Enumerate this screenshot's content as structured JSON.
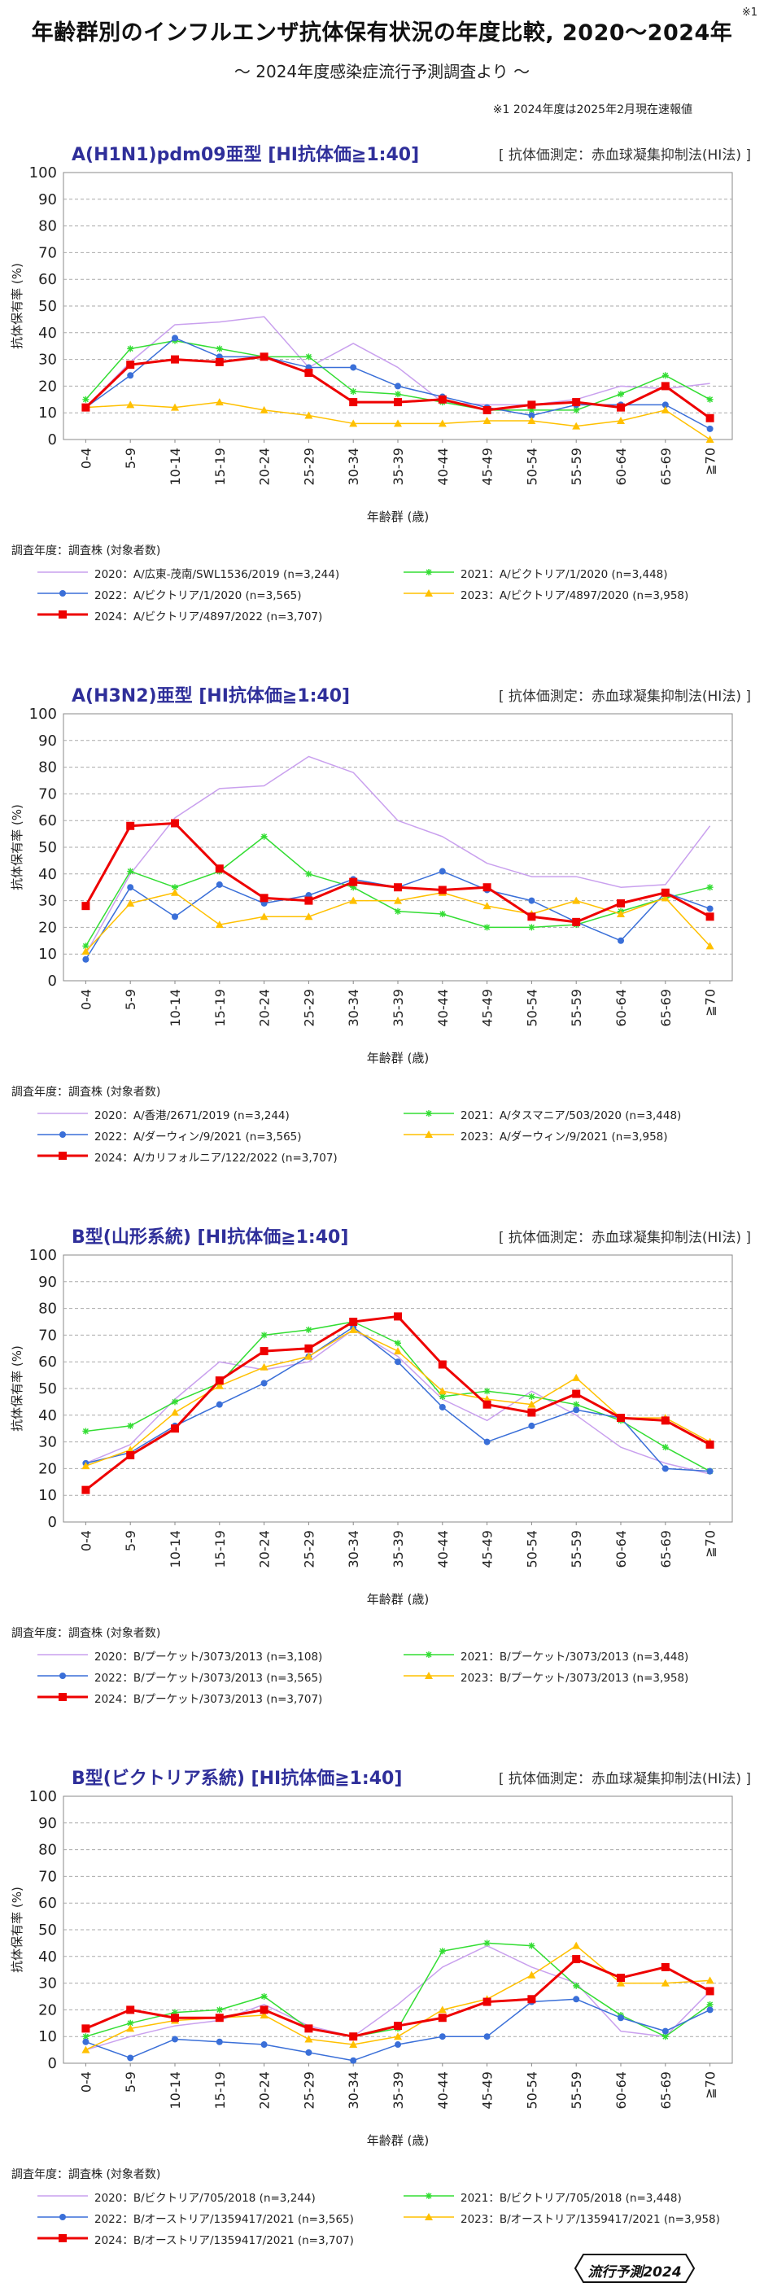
{
  "header": {
    "title": "年齢群別のインフルエンザ抗体保有状況の年度比較, 2020〜2024年",
    "title_sup": "※1",
    "subtitle": "〜 2024年度感染症流行予測調査より 〜",
    "note": "※1 2024年度は2025年2月現在速報値"
  },
  "badge": {
    "label": "流行予測2024"
  },
  "chart_data": [
    {
      "type": "line",
      "title": "A(H1N1)pdm09亜型 [HI抗体価≧1:40]",
      "method": "[ 抗体価測定：赤血球凝集抑制法(HI法) ]",
      "xlabel": "年齢群 (歳)",
      "ylabel": "抗体保有率 (%)",
      "ylim": [
        0,
        100
      ],
      "yticks": [
        0,
        10,
        20,
        30,
        40,
        50,
        60,
        70,
        80,
        90,
        100
      ],
      "grid": true,
      "legend_header": "調査年度：調査株 (対象者数)",
      "categories": [
        "0-4",
        "5-9",
        "10-14",
        "15-19",
        "20-24",
        "25-29",
        "30-34",
        "35-39",
        "40-44",
        "45-49",
        "50-54",
        "55-59",
        "60-64",
        "65-69",
        "≧70"
      ],
      "series": [
        {
          "name": "2020：A/広東-茂南/SWL1536/2019 (n=3,244)",
          "color": "#c9a0ee",
          "marker": "none",
          "width": 1.5,
          "values": [
            12,
            29,
            43,
            44,
            46,
            27,
            36,
            27,
            14,
            13,
            13,
            15,
            20,
            19,
            21
          ]
        },
        {
          "name": "2021：A/ビクトリア/1/2020 (n=3,448)",
          "color": "#33dd33",
          "marker": "star",
          "width": 1.5,
          "values": [
            15,
            34,
            37,
            34,
            31,
            31,
            18,
            17,
            14,
            11,
            11,
            11,
            17,
            24,
            15
          ]
        },
        {
          "name": "2022：A/ビクトリア/1/2020 (n=3,565)",
          "color": "#3a6fd8",
          "marker": "circle",
          "width": 1.5,
          "values": [
            12,
            24,
            38,
            31,
            31,
            27,
            27,
            20,
            16,
            12,
            9,
            13,
            13,
            13,
            4
          ]
        },
        {
          "name": "2023：A/ビクトリア/4897/2020 (n=3,958)",
          "color": "#ffc000",
          "marker": "triangle",
          "width": 1.5,
          "values": [
            12,
            13,
            12,
            14,
            11,
            9,
            6,
            6,
            6,
            7,
            7,
            5,
            7,
            11,
            0
          ]
        },
        {
          "name": "2024：A/ビクトリア/4897/2022 (n=3,707)",
          "color": "#ee0000",
          "marker": "square",
          "width": 3,
          "values": [
            12,
            28,
            30,
            29,
            31,
            25,
            14,
            14,
            15,
            11,
            13,
            14,
            12,
            20,
            8
          ]
        }
      ]
    },
    {
      "type": "line",
      "title": "A(H3N2)亜型 [HI抗体価≧1:40]",
      "method": "[ 抗体価測定：赤血球凝集抑制法(HI法) ]",
      "xlabel": "年齢群 (歳)",
      "ylabel": "抗体保有率 (%)",
      "ylim": [
        0,
        100
      ],
      "yticks": [
        0,
        10,
        20,
        30,
        40,
        50,
        60,
        70,
        80,
        90,
        100
      ],
      "grid": true,
      "legend_header": "調査年度：調査株 (対象者数)",
      "categories": [
        "0-4",
        "5-9",
        "10-14",
        "15-19",
        "20-24",
        "25-29",
        "30-34",
        "35-39",
        "40-44",
        "45-49",
        "50-54",
        "55-59",
        "60-64",
        "65-69",
        "≧70"
      ],
      "series": [
        {
          "name": "2020：A/香港/2671/2019 (n=3,244)",
          "color": "#c9a0ee",
          "marker": "none",
          "width": 1.5,
          "values": [
            10,
            40,
            61,
            72,
            73,
            84,
            78,
            60,
            54,
            44,
            39,
            39,
            35,
            36,
            58
          ]
        },
        {
          "name": "2021：A/タスマニア/503/2020 (n=3,448)",
          "color": "#33dd33",
          "marker": "star",
          "width": 1.5,
          "values": [
            13,
            41,
            35,
            41,
            54,
            40,
            35,
            26,
            25,
            20,
            20,
            21,
            26,
            31,
            35
          ]
        },
        {
          "name": "2022：A/ダーウィン/9/2021 (n=3,565)",
          "color": "#3a6fd8",
          "marker": "circle",
          "width": 1.5,
          "values": [
            8,
            35,
            24,
            36,
            29,
            32,
            38,
            35,
            41,
            34,
            30,
            22,
            15,
            33,
            27
          ]
        },
        {
          "name": "2023：A/ダーウィン/9/2021 (n=3,958)",
          "color": "#ffc000",
          "marker": "triangle",
          "width": 1.5,
          "values": [
            11,
            29,
            33,
            21,
            24,
            24,
            30,
            30,
            33,
            28,
            25,
            30,
            25,
            31,
            13
          ]
        },
        {
          "name": "2024：A/カリフォルニア/122/2022 (n=3,707)",
          "color": "#ee0000",
          "marker": "square",
          "width": 3,
          "values": [
            28,
            58,
            59,
            42,
            31,
            30,
            37,
            35,
            34,
            35,
            24,
            22,
            29,
            33,
            24
          ]
        }
      ]
    },
    {
      "type": "line",
      "title": "B型(山形系統) [HI抗体価≧1:40]",
      "method": "[ 抗体価測定：赤血球凝集抑制法(HI法) ]",
      "xlabel": "年齢群 (歳)",
      "ylabel": "抗体保有率 (%)",
      "ylim": [
        0,
        100
      ],
      "yticks": [
        0,
        10,
        20,
        30,
        40,
        50,
        60,
        70,
        80,
        90,
        100
      ],
      "grid": true,
      "legend_header": "調査年度：調査株 (対象者数)",
      "categories": [
        "0-4",
        "5-9",
        "10-14",
        "15-19",
        "20-24",
        "25-29",
        "30-34",
        "35-39",
        "40-44",
        "45-49",
        "50-54",
        "55-59",
        "60-64",
        "65-69",
        "≧70"
      ],
      "series": [
        {
          "name": "2020：B/プーケット/3073/2013 (n=3,108)",
          "color": "#c9a0ee",
          "marker": "none",
          "width": 1.5,
          "values": [
            22,
            29,
            46,
            60,
            57,
            60,
            72,
            62,
            46,
            38,
            49,
            40,
            28,
            22,
            18
          ]
        },
        {
          "name": "2021：B/プーケット/3073/2013 (n=3,448)",
          "color": "#33dd33",
          "marker": "star",
          "width": 1.5,
          "values": [
            34,
            36,
            45,
            52,
            70,
            72,
            75,
            67,
            47,
            49,
            47,
            44,
            38,
            28,
            19
          ]
        },
        {
          "name": "2022：B/プーケット/3073/2013 (n=3,565)",
          "color": "#3a6fd8",
          "marker": "circle",
          "width": 1.5,
          "values": [
            22,
            26,
            36,
            44,
            52,
            62,
            73,
            60,
            43,
            30,
            36,
            42,
            39,
            20,
            19
          ]
        },
        {
          "name": "2023：B/プーケット/3073/2013 (n=3,958)",
          "color": "#ffc000",
          "marker": "triangle",
          "width": 1.5,
          "values": [
            21,
            27,
            41,
            51,
            58,
            62,
            72,
            64,
            49,
            46,
            44,
            54,
            39,
            39,
            30
          ]
        },
        {
          "name": "2024：B/プーケット/3073/2013 (n=3,707)",
          "color": "#ee0000",
          "marker": "square",
          "width": 3,
          "values": [
            12,
            25,
            35,
            53,
            64,
            65,
            75,
            77,
            59,
            44,
            41,
            48,
            39,
            38,
            29
          ]
        }
      ]
    },
    {
      "type": "line",
      "title": "B型(ビクトリア系統) [HI抗体価≧1:40]",
      "method": "[ 抗体価測定：赤血球凝集抑制法(HI法) ]",
      "xlabel": "年齢群 (歳)",
      "ylabel": "抗体保有率 (%)",
      "ylim": [
        0,
        100
      ],
      "yticks": [
        0,
        10,
        20,
        30,
        40,
        50,
        60,
        70,
        80,
        90,
        100
      ],
      "grid": true,
      "legend_header": "調査年度：調査株 (対象者数)",
      "categories": [
        "0-4",
        "5-9",
        "10-14",
        "15-19",
        "20-24",
        "25-29",
        "30-34",
        "35-39",
        "40-44",
        "45-49",
        "50-54",
        "55-59",
        "60-64",
        "65-69",
        "≧70"
      ],
      "series": [
        {
          "name": "2020：B/ビクトリア/705/2018 (n=3,244)",
          "color": "#c9a0ee",
          "marker": "none",
          "width": 1.5,
          "values": [
            5,
            10,
            14,
            16,
            22,
            14,
            10,
            22,
            36,
            44,
            36,
            30,
            12,
            10,
            27
          ]
        },
        {
          "name": "2021：B/ビクトリア/705/2018 (n=3,448)",
          "color": "#33dd33",
          "marker": "star",
          "width": 1.5,
          "values": [
            10,
            15,
            19,
            20,
            25,
            13,
            10,
            13,
            42,
            45,
            44,
            29,
            18,
            10,
            22
          ]
        },
        {
          "name": "2022：B/オーストリア/1359417/2021 (n=3,565)",
          "color": "#3a6fd8",
          "marker": "circle",
          "width": 1.5,
          "values": [
            8,
            2,
            9,
            8,
            7,
            4,
            1,
            7,
            10,
            10,
            23,
            24,
            17,
            12,
            20
          ]
        },
        {
          "name": "2023：B/オーストリア/1359417/2021 (n=3,958)",
          "color": "#ffc000",
          "marker": "triangle",
          "width": 1.5,
          "values": [
            5,
            13,
            16,
            17,
            18,
            9,
            7,
            10,
            20,
            24,
            33,
            44,
            30,
            30,
            31
          ]
        },
        {
          "name": "2024：B/オーストリア/1359417/2021 (n=3,707)",
          "color": "#ee0000",
          "marker": "square",
          "width": 3,
          "values": [
            13,
            20,
            17,
            17,
            20,
            13,
            10,
            14,
            17,
            23,
            24,
            39,
            32,
            36,
            27
          ]
        }
      ]
    }
  ]
}
